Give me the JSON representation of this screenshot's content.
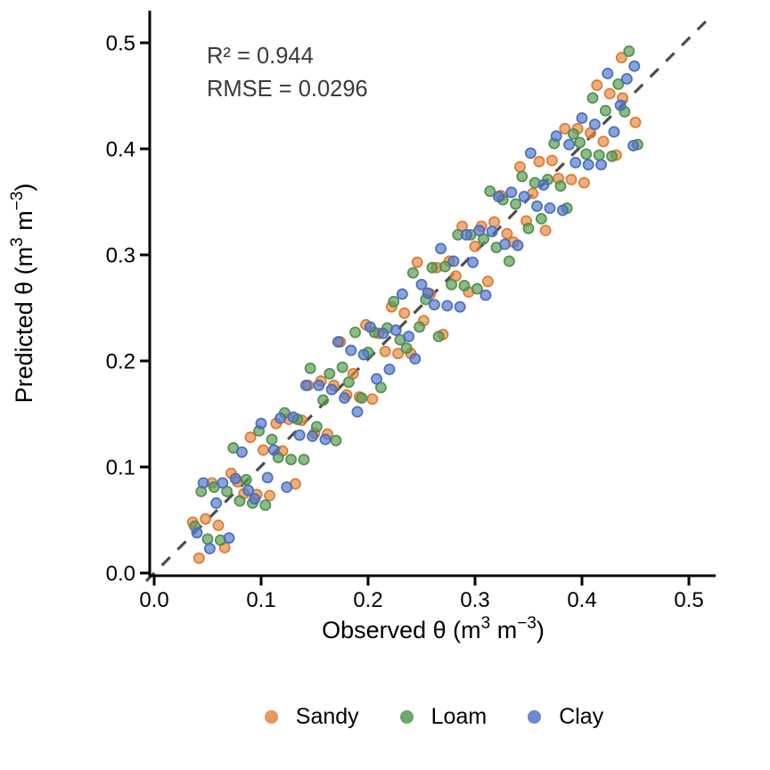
{
  "figure": {
    "annotation": {
      "r2": "R² = 0.944",
      "rmse": "RMSE = 0.0296"
    },
    "x_axis": {
      "label_parts": {
        "main": "Observed θ (m",
        "sup1": "3",
        "mid": " m",
        "sup2": "−3",
        "close": ")"
      },
      "ticks": [
        "0.0",
        "0.1",
        "0.2",
        "0.3",
        "0.4",
        "0.5"
      ]
    },
    "y_axis": {
      "label_parts": {
        "main": "Predicted θ (m",
        "sup1": "3",
        "mid": " m",
        "sup2": "−3",
        "close": ")"
      },
      "ticks": [
        "0.0",
        "0.1",
        "0.2",
        "0.3",
        "0.4",
        "0.5"
      ]
    },
    "legend": {
      "items": [
        {
          "label": "Sandy"
        },
        {
          "label": "Loam"
        },
        {
          "label": "Clay"
        }
      ]
    }
  },
  "chart_data": {
    "type": "scatter",
    "title": "",
    "xlabel": "Observed θ (m³ m⁻³)",
    "ylabel": "Predicted θ (m³ m⁻³)",
    "xlim": [
      0,
      0.525
    ],
    "ylim": [
      0,
      0.53
    ],
    "x_tick_values": [
      0,
      0.1,
      0.2,
      0.3,
      0.4,
      0.5
    ],
    "y_tick_values": [
      0,
      0.1,
      0.2,
      0.3,
      0.4,
      0.5
    ],
    "grid": false,
    "legend_position": "bottom",
    "annotations": [
      "R² = 0.944",
      "RMSE = 0.0296"
    ],
    "identity_line": {
      "slope": 1,
      "intercept": 0,
      "style": "dashed",
      "color": "#4d4d4d"
    },
    "point_style": {
      "radius": 5.6,
      "fill_opacity": 0.68,
      "stroke_opacity": 0.95,
      "stroke_width": 1.7
    },
    "axis_color": "#000000",
    "series": [
      {
        "name": "Sandy",
        "fill": "#E8883E",
        "stroke": "#D9762E",
        "points": [
          [
            0.036,
            0.048
          ],
          [
            0.042,
            0.014
          ],
          [
            0.048,
            0.051
          ],
          [
            0.054,
            0.085
          ],
          [
            0.06,
            0.045
          ],
          [
            0.066,
            0.024
          ],
          [
            0.072,
            0.094
          ],
          [
            0.078,
            0.086
          ],
          [
            0.084,
            0.075
          ],
          [
            0.09,
            0.128
          ],
          [
            0.096,
            0.074
          ],
          [
            0.102,
            0.116
          ],
          [
            0.108,
            0.073
          ],
          [
            0.114,
            0.141
          ],
          [
            0.12,
            0.115
          ],
          [
            0.126,
            0.145
          ],
          [
            0.132,
            0.084
          ],
          [
            0.138,
            0.144
          ],
          [
            0.144,
            0.177
          ],
          [
            0.15,
            0.132
          ],
          [
            0.156,
            0.181
          ],
          [
            0.162,
            0.131
          ],
          [
            0.168,
            0.177
          ],
          [
            0.174,
            0.218
          ],
          [
            0.18,
            0.168
          ],
          [
            0.186,
            0.188
          ],
          [
            0.192,
            0.166
          ],
          [
            0.198,
            0.234
          ],
          [
            0.204,
            0.164
          ],
          [
            0.21,
            0.226
          ],
          [
            0.216,
            0.209
          ],
          [
            0.222,
            0.251
          ],
          [
            0.228,
            0.207
          ],
          [
            0.234,
            0.245
          ],
          [
            0.24,
            0.207
          ],
          [
            0.246,
            0.293
          ],
          [
            0.252,
            0.238
          ],
          [
            0.258,
            0.263
          ],
          [
            0.264,
            0.288
          ],
          [
            0.27,
            0.225
          ],
          [
            0.276,
            0.294
          ],
          [
            0.282,
            0.28
          ],
          [
            0.288,
            0.327
          ],
          [
            0.294,
            0.265
          ],
          [
            0.3,
            0.308
          ],
          [
            0.306,
            0.327
          ],
          [
            0.312,
            0.275
          ],
          [
            0.318,
            0.331
          ],
          [
            0.324,
            0.356
          ],
          [
            0.33,
            0.32
          ],
          [
            0.336,
            0.312
          ],
          [
            0.342,
            0.383
          ],
          [
            0.348,
            0.332
          ],
          [
            0.354,
            0.358
          ],
          [
            0.36,
            0.388
          ],
          [
            0.366,
            0.323
          ],
          [
            0.372,
            0.389
          ],
          [
            0.378,
            0.372
          ],
          [
            0.384,
            0.419
          ],
          [
            0.39,
            0.371
          ],
          [
            0.396,
            0.419
          ],
          [
            0.402,
            0.368
          ],
          [
            0.408,
            0.415
          ],
          [
            0.414,
            0.46
          ],
          [
            0.42,
            0.407
          ],
          [
            0.426,
            0.452
          ],
          [
            0.432,
            0.394
          ],
          [
            0.438,
            0.448
          ],
          [
            0.437,
            0.486
          ],
          [
            0.45,
            0.425
          ]
        ]
      },
      {
        "name": "Loam",
        "fill": "#559B50",
        "stroke": "#4B8C47",
        "points": [
          [
            0.038,
            0.044
          ],
          [
            0.044,
            0.077
          ],
          [
            0.05,
            0.032
          ],
          [
            0.056,
            0.081
          ],
          [
            0.062,
            0.031
          ],
          [
            0.068,
            0.077
          ],
          [
            0.074,
            0.118
          ],
          [
            0.08,
            0.068
          ],
          [
            0.086,
            0.088
          ],
          [
            0.092,
            0.066
          ],
          [
            0.098,
            0.134
          ],
          [
            0.104,
            0.064
          ],
          [
            0.11,
            0.126
          ],
          [
            0.116,
            0.109
          ],
          [
            0.122,
            0.151
          ],
          [
            0.128,
            0.107
          ],
          [
            0.134,
            0.145
          ],
          [
            0.14,
            0.107
          ],
          [
            0.146,
            0.193
          ],
          [
            0.152,
            0.138
          ],
          [
            0.158,
            0.163
          ],
          [
            0.164,
            0.188
          ],
          [
            0.17,
            0.125
          ],
          [
            0.176,
            0.194
          ],
          [
            0.182,
            0.18
          ],
          [
            0.188,
            0.227
          ],
          [
            0.194,
            0.165
          ],
          [
            0.2,
            0.208
          ],
          [
            0.206,
            0.227
          ],
          [
            0.212,
            0.175
          ],
          [
            0.218,
            0.231
          ],
          [
            0.224,
            0.256
          ],
          [
            0.23,
            0.22
          ],
          [
            0.236,
            0.212
          ],
          [
            0.242,
            0.283
          ],
          [
            0.248,
            0.232
          ],
          [
            0.254,
            0.258
          ],
          [
            0.26,
            0.288
          ],
          [
            0.266,
            0.223
          ],
          [
            0.272,
            0.289
          ],
          [
            0.278,
            0.272
          ],
          [
            0.284,
            0.319
          ],
          [
            0.29,
            0.271
          ],
          [
            0.296,
            0.319
          ],
          [
            0.302,
            0.268
          ],
          [
            0.308,
            0.315
          ],
          [
            0.314,
            0.36
          ],
          [
            0.32,
            0.307
          ],
          [
            0.326,
            0.352
          ],
          [
            0.332,
            0.294
          ],
          [
            0.338,
            0.348
          ],
          [
            0.344,
            0.374
          ],
          [
            0.35,
            0.325
          ],
          [
            0.356,
            0.368
          ],
          [
            0.362,
            0.334
          ],
          [
            0.368,
            0.371
          ],
          [
            0.374,
            0.405
          ],
          [
            0.38,
            0.365
          ],
          [
            0.386,
            0.344
          ],
          [
            0.392,
            0.414
          ],
          [
            0.398,
            0.406
          ],
          [
            0.404,
            0.395
          ],
          [
            0.41,
            0.448
          ],
          [
            0.416,
            0.394
          ],
          [
            0.422,
            0.436
          ],
          [
            0.428,
            0.393
          ],
          [
            0.434,
            0.461
          ],
          [
            0.44,
            0.435
          ],
          [
            0.444,
            0.492
          ],
          [
            0.452,
            0.404
          ]
        ]
      },
      {
        "name": "Clay",
        "fill": "#5077CB",
        "stroke": "#4569BC",
        "points": [
          [
            0.04,
            0.038
          ],
          [
            0.046,
            0.085
          ],
          [
            0.052,
            0.023
          ],
          [
            0.058,
            0.066
          ],
          [
            0.064,
            0.085
          ],
          [
            0.07,
            0.033
          ],
          [
            0.076,
            0.089
          ],
          [
            0.082,
            0.114
          ],
          [
            0.088,
            0.078
          ],
          [
            0.094,
            0.07
          ],
          [
            0.1,
            0.141
          ],
          [
            0.106,
            0.09
          ],
          [
            0.112,
            0.116
          ],
          [
            0.118,
            0.146
          ],
          [
            0.124,
            0.081
          ],
          [
            0.13,
            0.147
          ],
          [
            0.136,
            0.13
          ],
          [
            0.142,
            0.177
          ],
          [
            0.148,
            0.129
          ],
          [
            0.154,
            0.177
          ],
          [
            0.16,
            0.126
          ],
          [
            0.166,
            0.173
          ],
          [
            0.172,
            0.218
          ],
          [
            0.178,
            0.165
          ],
          [
            0.184,
            0.21
          ],
          [
            0.19,
            0.152
          ],
          [
            0.196,
            0.206
          ],
          [
            0.202,
            0.232
          ],
          [
            0.208,
            0.183
          ],
          [
            0.214,
            0.226
          ],
          [
            0.22,
            0.192
          ],
          [
            0.226,
            0.229
          ],
          [
            0.232,
            0.263
          ],
          [
            0.238,
            0.223
          ],
          [
            0.244,
            0.202
          ],
          [
            0.25,
            0.272
          ],
          [
            0.256,
            0.264
          ],
          [
            0.262,
            0.253
          ],
          [
            0.268,
            0.306
          ],
          [
            0.274,
            0.252
          ],
          [
            0.28,
            0.294
          ],
          [
            0.286,
            0.251
          ],
          [
            0.292,
            0.319
          ],
          [
            0.298,
            0.293
          ],
          [
            0.304,
            0.323
          ],
          [
            0.31,
            0.262
          ],
          [
            0.316,
            0.322
          ],
          [
            0.322,
            0.355
          ],
          [
            0.328,
            0.31
          ],
          [
            0.334,
            0.359
          ],
          [
            0.34,
            0.309
          ],
          [
            0.346,
            0.355
          ],
          [
            0.352,
            0.396
          ],
          [
            0.358,
            0.346
          ],
          [
            0.364,
            0.366
          ],
          [
            0.37,
            0.344
          ],
          [
            0.376,
            0.412
          ],
          [
            0.382,
            0.342
          ],
          [
            0.388,
            0.404
          ],
          [
            0.394,
            0.387
          ],
          [
            0.4,
            0.429
          ],
          [
            0.406,
            0.385
          ],
          [
            0.412,
            0.423
          ],
          [
            0.418,
            0.385
          ],
          [
            0.424,
            0.471
          ],
          [
            0.43,
            0.416
          ],
          [
            0.436,
            0.441
          ],
          [
            0.442,
            0.466
          ],
          [
            0.448,
            0.403
          ],
          [
            0.449,
            0.478
          ]
        ]
      }
    ]
  }
}
